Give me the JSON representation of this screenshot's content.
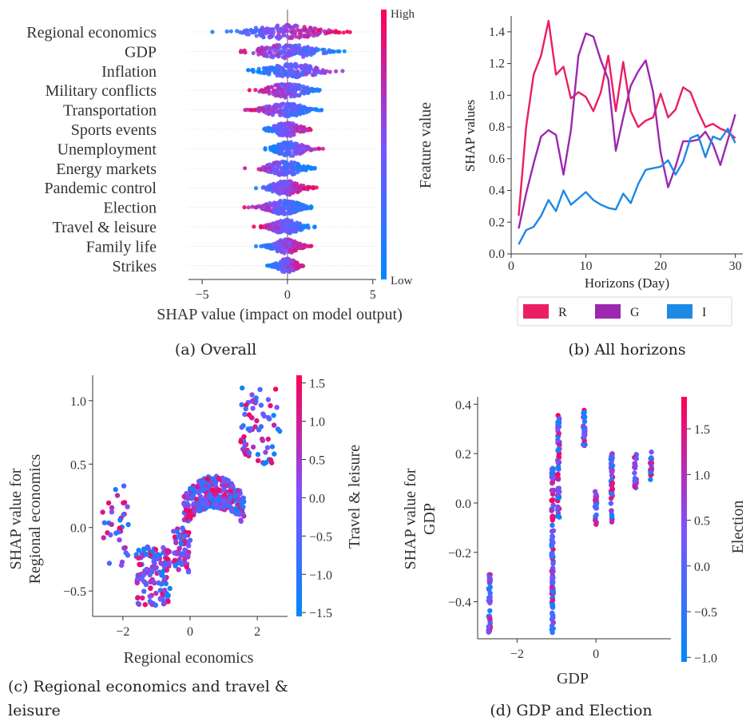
{
  "figure": {
    "captions": {
      "a": "(a) Overall",
      "b": "(b) All horizons",
      "c_line1": "(c)  Regional  economics  and  travel  &",
      "c_line2": "leisure",
      "d": "(d) GDP and Election"
    }
  },
  "chart_data": [
    {
      "id": "a",
      "type": "scatter",
      "subtype": "beeswarm",
      "xlabel": "SHAP value (impact on model output)",
      "xlim": [
        -5.8,
        5.2
      ],
      "xticks": [
        -5,
        0,
        5
      ],
      "features": [
        "Regional economics",
        "GDP",
        "Inflation",
        "Military conflicts",
        "Transportation",
        "Sports events",
        "Unemployment",
        "Energy markets",
        "Pandemic control",
        "Election",
        "Travel & leisure",
        "Family life",
        "Strikes"
      ],
      "ranges": [
        [
          -5.3,
          3.7
        ],
        [
          -4.0,
          3.6
        ],
        [
          -2.3,
          4.8
        ],
        [
          -2.5,
          2.5
        ],
        [
          -3.1,
          2.0
        ],
        [
          -1.9,
          1.7
        ],
        [
          -1.3,
          2.5
        ],
        [
          -3.0,
          1.6
        ],
        [
          -2.3,
          1.7
        ],
        [
          -3.1,
          1.4
        ],
        [
          -2.3,
          1.6
        ],
        [
          -2.0,
          1.4
        ],
        [
          -1.3,
          1.2
        ]
      ],
      "colorbar": {
        "label": "Feature value",
        "high": "High",
        "low": "Low"
      },
      "colors": {
        "high": "#ff0052",
        "low": "#008afb"
      }
    },
    {
      "id": "b",
      "type": "line",
      "xlabel": "Horizons (Day)",
      "ylabel": "SHAP values",
      "xlim": [
        0,
        31
      ],
      "ylim": [
        0,
        1.5
      ],
      "xticks": [
        0,
        10,
        20,
        30
      ],
      "yticks": [
        "0.0",
        "0.2",
        "0.4",
        "0.6",
        "0.8",
        "1.0",
        "1.2",
        "1.4"
      ],
      "x": [
        1,
        2,
        3,
        4,
        5,
        6,
        7,
        8,
        9,
        10,
        11,
        12,
        13,
        14,
        15,
        16,
        17,
        18,
        19,
        20,
        21,
        22,
        23,
        24,
        25,
        26,
        27,
        28,
        29,
        30
      ],
      "series": [
        {
          "name": "R",
          "color": "#ea1e63",
          "values": [
            0.24,
            0.8,
            1.13,
            1.25,
            1.47,
            1.13,
            1.18,
            0.98,
            1.02,
            0.99,
            0.9,
            1.02,
            1.25,
            0.9,
            1.21,
            0.9,
            0.8,
            0.84,
            0.86,
            1.01,
            0.86,
            0.91,
            1.05,
            1.02,
            0.9,
            0.8,
            0.82,
            0.79,
            0.77,
            0.73
          ]
        },
        {
          "name": "G",
          "color": "#9c27b0",
          "values": [
            0.16,
            0.38,
            0.57,
            0.74,
            0.78,
            0.75,
            0.5,
            0.78,
            1.25,
            1.39,
            1.37,
            1.22,
            1.1,
            0.65,
            0.86,
            1.06,
            1.15,
            1.22,
            1.02,
            0.64,
            0.42,
            0.55,
            0.71,
            0.71,
            0.72,
            0.77,
            0.69,
            0.56,
            0.72,
            0.88
          ]
        },
        {
          "name": "I",
          "color": "#1e88e5",
          "values": [
            0.06,
            0.15,
            0.17,
            0.24,
            0.34,
            0.27,
            0.4,
            0.31,
            0.35,
            0.39,
            0.34,
            0.31,
            0.29,
            0.28,
            0.38,
            0.32,
            0.44,
            0.53,
            0.54,
            0.55,
            0.59,
            0.5,
            0.58,
            0.73,
            0.75,
            0.61,
            0.74,
            0.72,
            0.79,
            0.7
          ]
        }
      ]
    },
    {
      "id": "c",
      "type": "scatter",
      "xlabel": "Regional economics",
      "ylabel_line1": "SHAP value for",
      "ylabel_line2": "Regional economics",
      "xlim": [
        -2.9,
        2.9
      ],
      "ylim": [
        -0.7,
        1.2
      ],
      "xticks": [
        "−2",
        "0",
        "2"
      ],
      "yticks": [
        "−0.5",
        "0.0",
        "0.5",
        "1.0"
      ],
      "colorbar": {
        "label": "Travel & leisure",
        "ticks": [
          "1.5",
          "1.0",
          "0.5",
          "0.0",
          "−0.5",
          "−1.0",
          "−1.5"
        ],
        "range": [
          -1.55,
          1.6
        ]
      },
      "clusters": [
        {
          "x": [
            -2.6,
            -1.8
          ],
          "y": [
            -0.3,
            0.35
          ]
        },
        {
          "x": [
            -1.6,
            -0.6
          ],
          "y": [
            -0.62,
            -0.15
          ]
        },
        {
          "x": [
            -0.5,
            0.0
          ],
          "y": [
            -0.35,
            0.0
          ]
        },
        {
          "x": [
            -0.2,
            1.6
          ],
          "y": [
            -0.15,
            0.35
          ]
        },
        {
          "x": [
            1.5,
            2.7
          ],
          "y": [
            0.5,
            1.1
          ]
        }
      ]
    },
    {
      "id": "d",
      "type": "scatter",
      "xlabel": "GDP",
      "ylabel_line1": "SHAP value for",
      "ylabel_line2": "GDP",
      "xlim": [
        -3.0,
        1.9
      ],
      "ylim": [
        -0.55,
        0.43
      ],
      "xticks": [
        "−2",
        "0"
      ],
      "yticks": [
        "−0.4",
        "−0.2",
        "0.0",
        "0.2",
        "0.4"
      ],
      "colorbar": {
        "label": "Election",
        "ticks": [
          "1.5",
          "1.0",
          "0.5",
          "0.0",
          "−0.5",
          "−1.0"
        ],
        "range": [
          -1.05,
          1.85
        ]
      },
      "columns": [
        {
          "x": -2.7,
          "y": [
            -0.53,
            -0.29
          ]
        },
        {
          "x": -1.1,
          "y": [
            -0.53,
            0.14
          ]
        },
        {
          "x": -0.95,
          "y": [
            -0.06,
            0.36
          ]
        },
        {
          "x": -0.3,
          "y": [
            0.22,
            0.38
          ]
        },
        {
          "x": 0.0,
          "y": [
            -0.09,
            0.05
          ]
        },
        {
          "x": 0.4,
          "y": [
            -0.08,
            0.21
          ]
        },
        {
          "x": 1.0,
          "y": [
            0.06,
            0.2
          ]
        },
        {
          "x": 1.4,
          "y": [
            0.09,
            0.21
          ]
        }
      ]
    }
  ]
}
